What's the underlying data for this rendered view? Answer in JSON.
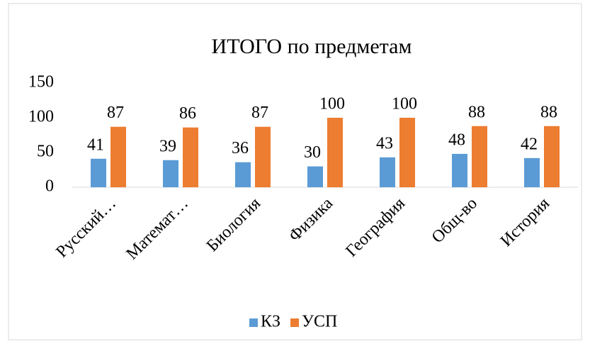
{
  "chart_data": {
    "type": "bar",
    "title": "ИТОГО по предметам",
    "categories": [
      "Русский…",
      "Математ…",
      "Биология",
      "Физика",
      "География",
      "Общ-во",
      "История"
    ],
    "series": [
      {
        "name": "КЗ",
        "color": "#5b9bd5",
        "values": [
          41,
          39,
          36,
          30,
          43,
          48,
          42
        ]
      },
      {
        "name": "УСП",
        "color": "#ed7d31",
        "values": [
          87,
          86,
          87,
          100,
          100,
          88,
          88
        ]
      }
    ],
    "ylim": [
      0,
      150
    ],
    "yticks": [
      0,
      50,
      100,
      150
    ],
    "grid": false,
    "legend": "bottom"
  }
}
